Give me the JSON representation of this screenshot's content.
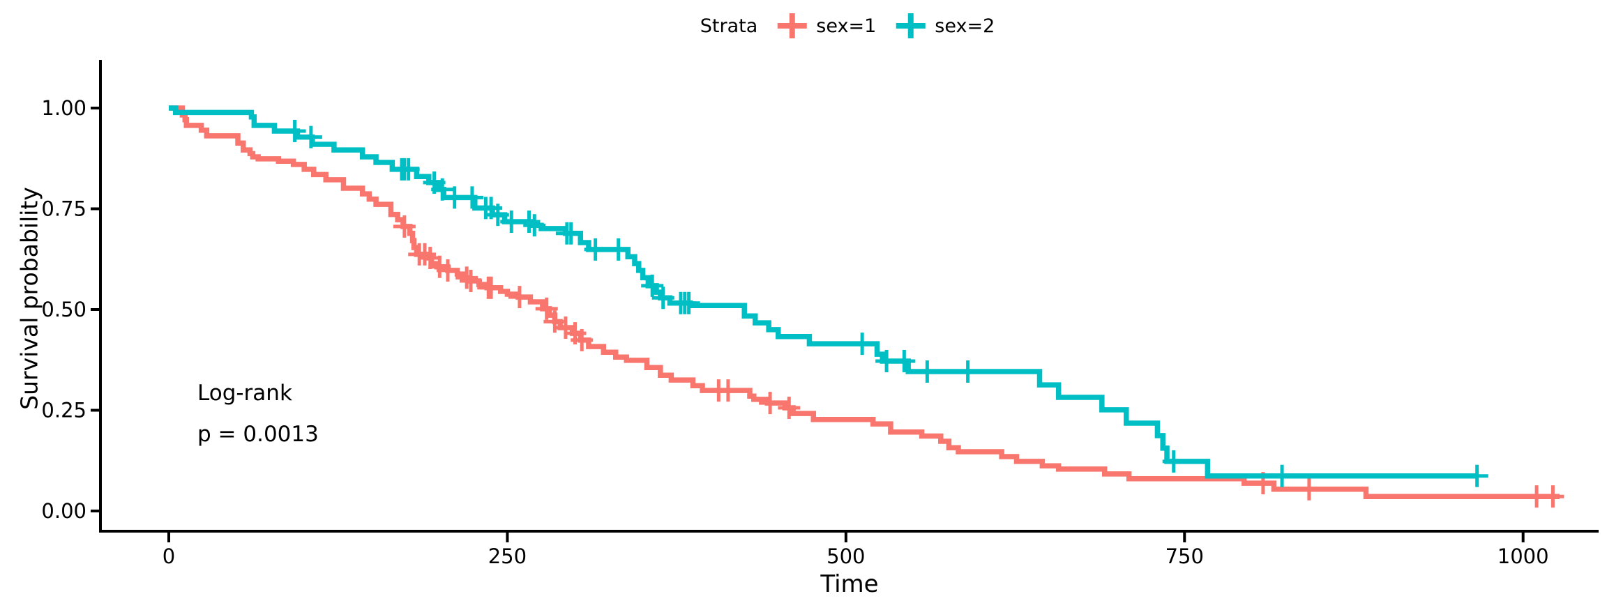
{
  "chart_data": {
    "type": "line",
    "subtype": "kaplan-meier-step-function",
    "title": "",
    "xlabel": "Time",
    "ylabel": "Survival probability",
    "grid": false,
    "xlim": [
      -50,
      1055
    ],
    "ylim": [
      -0.05,
      1.0
    ],
    "xticks": [
      {
        "label": "0",
        "value": 0
      },
      {
        "label": "250",
        "value": 250
      },
      {
        "label": "500",
        "value": 500
      },
      {
        "label": "750",
        "value": 750
      },
      {
        "label": "1000",
        "value": 1000
      }
    ],
    "yticks": [
      {
        "label": "0.00",
        "value": 0.0
      },
      {
        "label": "0.25",
        "value": 0.25
      },
      {
        "label": "0.50",
        "value": 0.5
      },
      {
        "label": "0.75",
        "value": 0.75
      },
      {
        "label": "1.00",
        "value": 1.0
      }
    ],
    "legend": {
      "title": "Strata",
      "position": "top",
      "entries": [
        {
          "label": "sex=1",
          "color": "#F8766D"
        },
        {
          "label": "sex=2",
          "color": "#00BFC4"
        }
      ]
    },
    "annotation": {
      "line1": "Log-rank",
      "line2": "p = 0.0013"
    },
    "series": [
      {
        "name": "sex=1",
        "color": "#F8766D",
        "end_time": 1027,
        "points": [
          [
            0,
            1.0
          ],
          [
            10,
            0.983
          ],
          [
            12,
            0.971
          ],
          [
            13,
            0.957
          ],
          [
            24,
            0.945
          ],
          [
            28,
            0.931
          ],
          [
            51,
            0.913
          ],
          [
            55,
            0.896
          ],
          [
            60,
            0.887
          ],
          [
            62,
            0.879
          ],
          [
            66,
            0.874
          ],
          [
            81,
            0.868
          ],
          [
            92,
            0.86
          ],
          [
            100,
            0.848
          ],
          [
            107,
            0.835
          ],
          [
            116,
            0.822
          ],
          [
            129,
            0.801
          ],
          [
            143,
            0.787
          ],
          [
            148,
            0.774
          ],
          [
            153,
            0.761
          ],
          [
            164,
            0.736
          ],
          [
            169,
            0.723
          ],
          [
            173,
            0.706
          ],
          [
            178,
            0.689
          ],
          [
            180,
            0.671
          ],
          [
            181,
            0.654
          ],
          [
            183,
            0.637
          ],
          [
            190,
            0.628
          ],
          [
            194,
            0.614
          ],
          [
            198,
            0.606
          ],
          [
            206,
            0.597
          ],
          [
            213,
            0.588
          ],
          [
            218,
            0.579
          ],
          [
            222,
            0.571
          ],
          [
            229,
            0.562
          ],
          [
            235,
            0.554
          ],
          [
            245,
            0.545
          ],
          [
            250,
            0.538
          ],
          [
            258,
            0.531
          ],
          [
            267,
            0.519
          ],
          [
            276,
            0.502
          ],
          [
            281,
            0.486
          ],
          [
            285,
            0.47
          ],
          [
            289,
            0.455
          ],
          [
            298,
            0.441
          ],
          [
            304,
            0.424
          ],
          [
            310,
            0.408
          ],
          [
            321,
            0.394
          ],
          [
            330,
            0.382
          ],
          [
            338,
            0.374
          ],
          [
            353,
            0.356
          ],
          [
            363,
            0.337
          ],
          [
            371,
            0.325
          ],
          [
            387,
            0.311
          ],
          [
            394,
            0.299
          ],
          [
            429,
            0.285
          ],
          [
            432,
            0.277
          ],
          [
            442,
            0.268
          ],
          [
            455,
            0.256
          ],
          [
            461,
            0.242
          ],
          [
            476,
            0.227
          ],
          [
            520,
            0.216
          ],
          [
            533,
            0.196
          ],
          [
            556,
            0.186
          ],
          [
            570,
            0.173
          ],
          [
            576,
            0.157
          ],
          [
            583,
            0.147
          ],
          [
            615,
            0.135
          ],
          [
            626,
            0.123
          ],
          [
            645,
            0.112
          ],
          [
            657,
            0.104
          ],
          [
            691,
            0.092
          ],
          [
            709,
            0.08
          ],
          [
            794,
            0.069
          ],
          [
            816,
            0.054
          ],
          [
            884,
            0.036
          ]
        ],
        "censor_times": [
          174,
          185,
          189,
          193,
          200,
          206,
          220,
          223,
          236,
          238,
          259,
          279,
          285,
          293,
          300,
          305,
          406,
          413,
          444,
          458,
          808,
          842,
          1010,
          1022
        ]
      },
      {
        "name": "sex=2",
        "color": "#00BFC4",
        "end_time": 966,
        "points": [
          [
            0,
            1.0
          ],
          [
            5,
            0.989
          ],
          [
            61,
            0.978
          ],
          [
            63,
            0.957
          ],
          [
            78,
            0.943
          ],
          [
            95,
            0.928
          ],
          [
            106,
            0.91
          ],
          [
            122,
            0.896
          ],
          [
            143,
            0.879
          ],
          [
            153,
            0.865
          ],
          [
            165,
            0.848
          ],
          [
            183,
            0.83
          ],
          [
            192,
            0.815
          ],
          [
            199,
            0.798
          ],
          [
            203,
            0.778
          ],
          [
            226,
            0.752
          ],
          [
            239,
            0.735
          ],
          [
            248,
            0.718
          ],
          [
            267,
            0.709
          ],
          [
            275,
            0.701
          ],
          [
            293,
            0.689
          ],
          [
            304,
            0.666
          ],
          [
            310,
            0.649
          ],
          [
            339,
            0.631
          ],
          [
            344,
            0.614
          ],
          [
            347,
            0.597
          ],
          [
            350,
            0.579
          ],
          [
            354,
            0.559
          ],
          [
            360,
            0.543
          ],
          [
            363,
            0.529
          ],
          [
            370,
            0.516
          ],
          [
            385,
            0.51
          ],
          [
            425,
            0.484
          ],
          [
            433,
            0.467
          ],
          [
            443,
            0.45
          ],
          [
            450,
            0.433
          ],
          [
            473,
            0.415
          ],
          [
            523,
            0.389
          ],
          [
            527,
            0.372
          ],
          [
            546,
            0.346
          ],
          [
            643,
            0.313
          ],
          [
            657,
            0.282
          ],
          [
            689,
            0.251
          ],
          [
            707,
            0.218
          ],
          [
            730,
            0.187
          ],
          [
            734,
            0.156
          ],
          [
            737,
            0.123
          ],
          [
            767,
            0.087
          ]
        ],
        "censor_times": [
          93,
          105,
          172,
          174,
          177,
          196,
          202,
          211,
          224,
          234,
          238,
          243,
          253,
          266,
          270,
          294,
          297,
          315,
          332,
          357,
          365,
          378,
          381,
          384,
          512,
          530,
          543,
          560,
          590,
          742,
          822,
          966
        ]
      }
    ]
  }
}
